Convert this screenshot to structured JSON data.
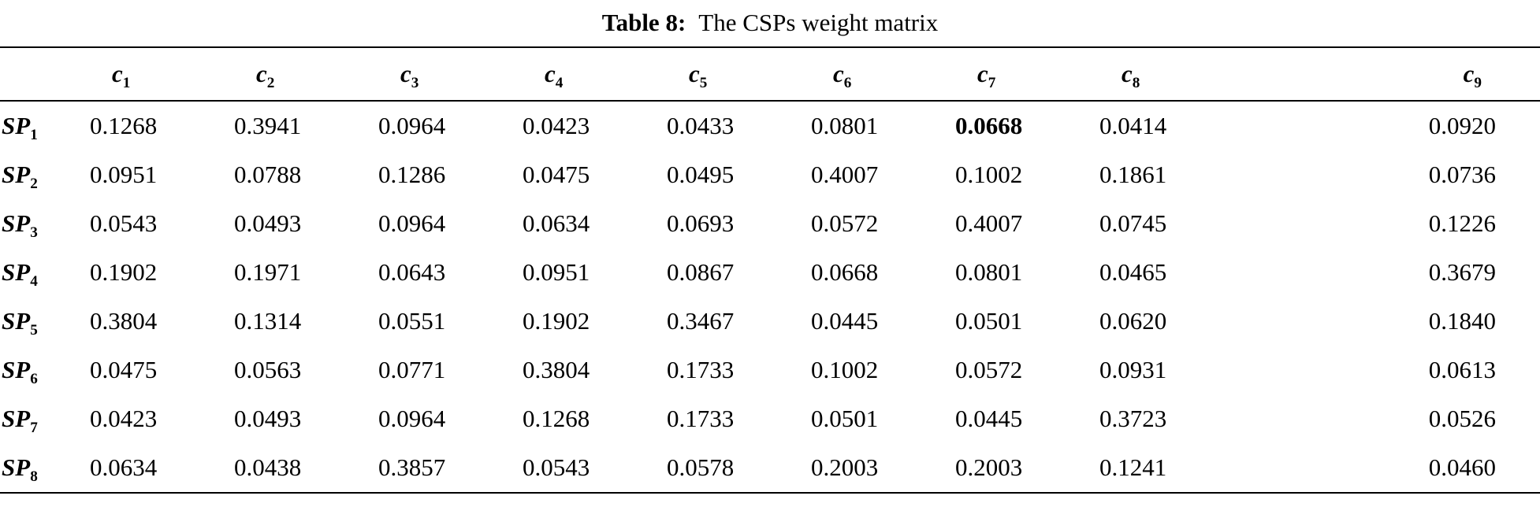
{
  "caption": {
    "label": "Table 8:",
    "title": "The CSPs weight matrix"
  },
  "table": {
    "columns": [
      {
        "base": "c",
        "sub": "1"
      },
      {
        "base": "c",
        "sub": "2"
      },
      {
        "base": "c",
        "sub": "3"
      },
      {
        "base": "c",
        "sub": "4"
      },
      {
        "base": "c",
        "sub": "5"
      },
      {
        "base": "c",
        "sub": "6"
      },
      {
        "base": "c",
        "sub": "7"
      },
      {
        "base": "c",
        "sub": "8"
      },
      {
        "base": "c",
        "sub": "9"
      }
    ],
    "rows": [
      {
        "label": {
          "base": "SP",
          "sub": "1"
        },
        "values": [
          "0.1268",
          "0.3941",
          "0.0964",
          "0.0423",
          "0.0433",
          "0.0801",
          "0.0668",
          "0.0414",
          "0.0920"
        ]
      },
      {
        "label": {
          "base": "SP",
          "sub": "2"
        },
        "values": [
          "0.0951",
          "0.0788",
          "0.1286",
          "0.0475",
          "0.0495",
          "0.4007",
          "0.1002",
          "0.1861",
          "0.0736"
        ]
      },
      {
        "label": {
          "base": "SP",
          "sub": "3"
        },
        "values": [
          "0.0543",
          "0.0493",
          "0.0964",
          "0.0634",
          "0.0693",
          "0.0572",
          "0.4007",
          "0.0745",
          "0.1226"
        ]
      },
      {
        "label": {
          "base": "SP",
          "sub": "4"
        },
        "values": [
          "0.1902",
          "0.1971",
          "0.0643",
          "0.0951",
          "0.0867",
          "0.0668",
          "0.0801",
          "0.0465",
          "0.3679"
        ]
      },
      {
        "label": {
          "base": "SP",
          "sub": "5"
        },
        "values": [
          "0.3804",
          "0.1314",
          "0.0551",
          "0.1902",
          "0.3467",
          "0.0445",
          "0.0501",
          "0.0620",
          "0.1840"
        ]
      },
      {
        "label": {
          "base": "SP",
          "sub": "6"
        },
        "values": [
          "0.0475",
          "0.0563",
          "0.0771",
          "0.3804",
          "0.1733",
          "0.1002",
          "0.0572",
          "0.0931",
          "0.0613"
        ]
      },
      {
        "label": {
          "base": "SP",
          "sub": "7"
        },
        "values": [
          "0.0423",
          "0.0493",
          "0.0964",
          "0.1268",
          "0.1733",
          "0.0501",
          "0.0445",
          "0.3723",
          "0.0526"
        ]
      },
      {
        "label": {
          "base": "SP",
          "sub": "8"
        },
        "values": [
          "0.0634",
          "0.0438",
          "0.3857",
          "0.0543",
          "0.0578",
          "0.2003",
          "0.2003",
          "0.1241",
          "0.0460"
        ]
      }
    ],
    "bold_cells": [
      [
        0,
        6
      ]
    ]
  }
}
